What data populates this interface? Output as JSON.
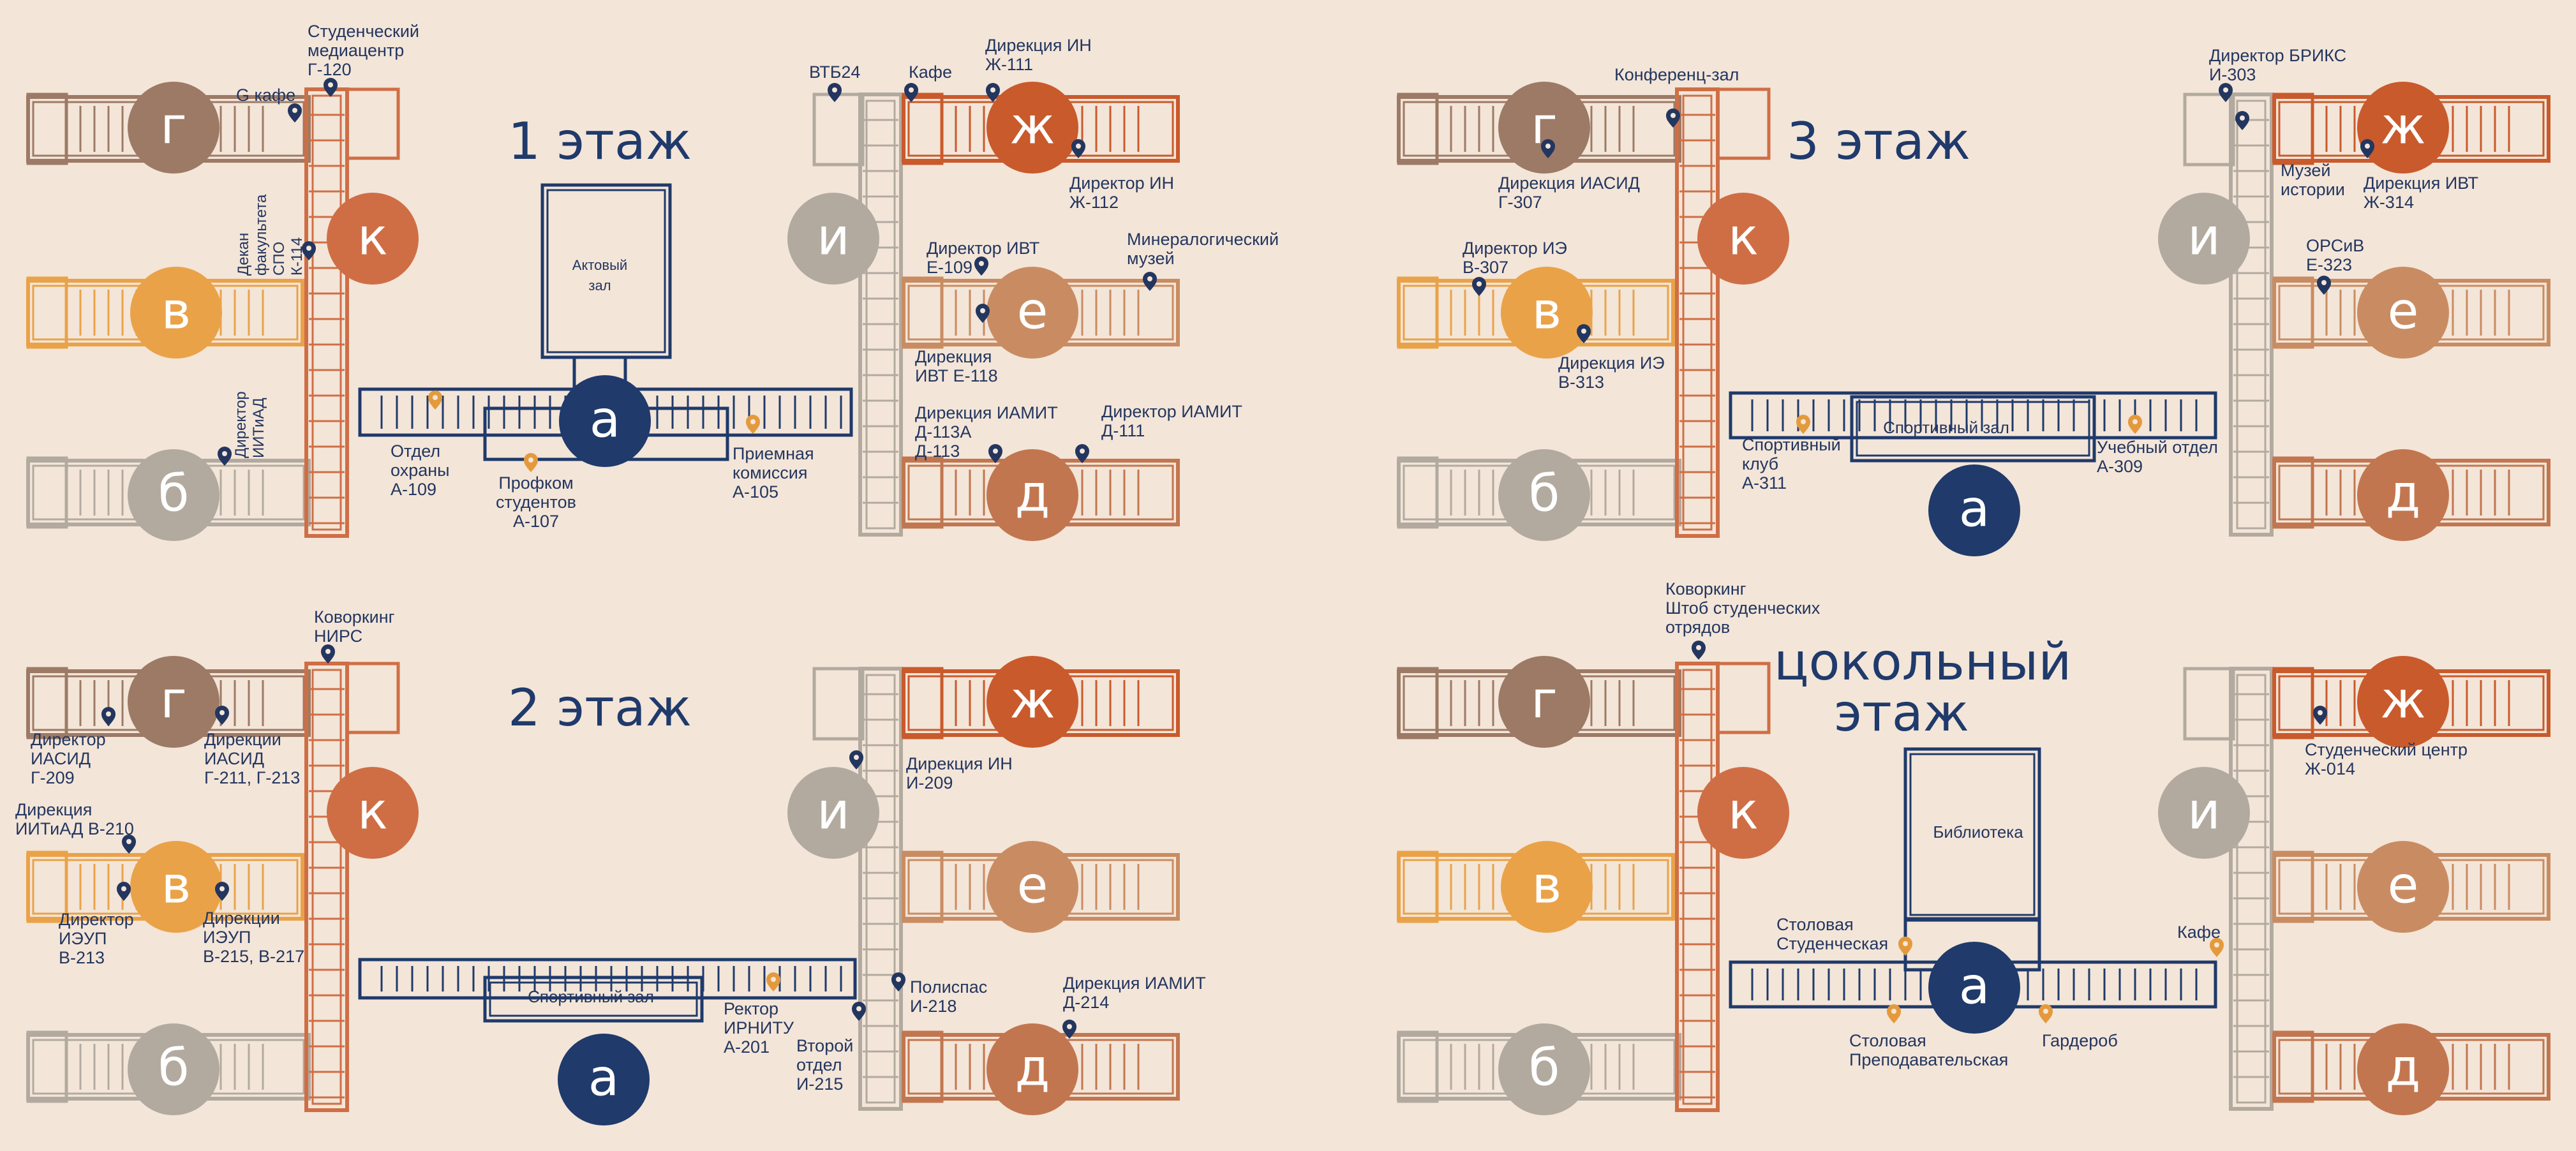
{
  "colors": {
    "background": "#f3e5d8",
    "navy": "#1f3a6b",
    "building_g": "#9c7a65",
    "building_k": "#cf6e45",
    "building_v": "#eaa248",
    "building_b": "#b3aa9f",
    "building_i": "#b3aa9f",
    "building_zh": "#c95a2c",
    "building_e": "#c98c62",
    "building_d": "#c2764f",
    "building_a": "#1f3a6b",
    "pin_navy": "#23365f",
    "pin_orange": "#e49a3c"
  },
  "floors": {
    "f1": {
      "title": "1 этаж",
      "hall": "Актовый\nзал",
      "labels": {
        "media": "Студенческий\nмедиацентр\nГ-120",
        "gcafe": "G кафе",
        "dekan": "Декан\nфакультета\nСПО\nК-114",
        "iitiad": "Директор\nИИТиАД",
        "ohrana": "Отдел\nохраны\nА-109",
        "profkom": "Профком\nстудентов\nА-107",
        "priem": "Приемная\nкомиссия\nА-105",
        "vtb": "ВТБ24",
        "cafe": "Кафе",
        "in_dir": "Дирекция ИН\nЖ-111",
        "in_director": "Директор ИН\nЖ-112",
        "ivt_director": "Директор ИВТ\nЕ-109",
        "museum": "Минералогический\nмузей",
        "ivt_dir": "Дирекция\nИВТ Е-118",
        "iamit_dir": "Дирекция ИАМИТ\nД-113А\nД-113",
        "iamit_director": "Директор ИАМИТ\nД-111"
      }
    },
    "f2": {
      "title": "2 этаж",
      "hall": "Спортивный зал",
      "labels": {
        "nirs": "Коворкинг\nНИРС",
        "iasid_director": "Директор\nИАСИД\nГ-209",
        "iasid_dir": "Дирекции\nИАСИД\nГ-211, Г-213",
        "iitiad_dir": "Дирекция\nИИТиАД В-210",
        "ieup_director": "Директор\nИЭУП\nВ-213",
        "ieup_dir": "Дирекции\nИЭУП\nВ-215, В-217",
        "rector": "Ректор\nИРНИТУ\nА-201",
        "in_dir": "Дирекция ИН\nИ-209",
        "polyspas": "Полиспас\nИ-218",
        "vtoroy": "Второй\nотдел\nИ-215",
        "iamit_dir": "Дирекция ИАМИТ\nД-214"
      }
    },
    "f3": {
      "title": "3 этаж",
      "hall": "Спортивный зал",
      "labels": {
        "conf": "Конференц-зал",
        "iasid_dir": "Дирекция ИАСИД\nГ-307",
        "ie_director": "Директор ИЭ\nВ-307",
        "ie_dir": "Дирекция ИЭ\nВ-313",
        "sport_club": "Спортивный\nклуб\nА-311",
        "ucheb": "Учебный отдел\nА-309",
        "brics": "Директор БРИКС\nИ-303",
        "museum": "Музей\nистории",
        "ivt_dir": "Дирекция ИВТ\nЖ-314",
        "orsiv": "ОРСиВ\nЕ-323"
      }
    },
    "f0": {
      "title": "цокольный\nэтаж",
      "hall": "Библиотека",
      "labels": {
        "cowork": "Коворкинг\nШтоб студенческих\nотрядов",
        "stud_center": "Студенческий центр\nЖ-014",
        "stolovaya_stud": "Столовая\nСтуденческая",
        "cafe": "Кафе",
        "stolovaya_prep": "Столовая\nПреподавательская",
        "garderob": "Гардероб"
      }
    }
  },
  "buildings": {
    "g": "г",
    "k": "к",
    "v": "в",
    "b": "б",
    "i": "и",
    "zh": "ж",
    "e": "е",
    "d": "д",
    "a": "а"
  }
}
